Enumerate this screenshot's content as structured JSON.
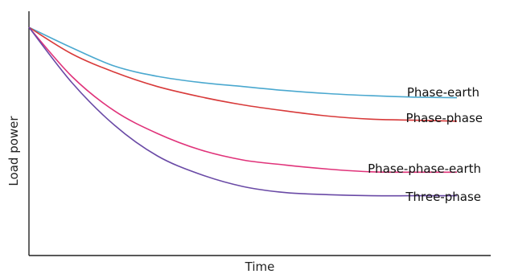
{
  "chart_data": {
    "type": "line",
    "title": "",
    "xlabel": "Time",
    "ylabel": "Load power",
    "x_ticks": [],
    "y_ticks": [],
    "xlim": [
      0,
      1
    ],
    "ylim": [
      0,
      1
    ],
    "grid": false,
    "legend": "inline labels at right end of each curve",
    "series": [
      {
        "name": "Phase-earth",
        "color": "#4aa8cf",
        "x": [
          0,
          0.1,
          0.2,
          0.3,
          0.4,
          0.5,
          0.6,
          0.7,
          0.8,
          0.9,
          1.0
        ],
        "y": [
          1.0,
          0.9,
          0.81,
          0.76,
          0.73,
          0.71,
          0.69,
          0.675,
          0.665,
          0.658,
          0.655
        ]
      },
      {
        "name": "Phase-phase",
        "color": "#d83a3a",
        "x": [
          0,
          0.1,
          0.2,
          0.3,
          0.4,
          0.5,
          0.6,
          0.7,
          0.8,
          0.9,
          1.0
        ],
        "y": [
          1.0,
          0.87,
          0.78,
          0.71,
          0.66,
          0.62,
          0.59,
          0.565,
          0.55,
          0.545,
          0.54
        ]
      },
      {
        "name": "Phase-phase-earth",
        "color": "#e0337a",
        "x": [
          0,
          0.1,
          0.2,
          0.3,
          0.4,
          0.5,
          0.6,
          0.7,
          0.8,
          0.9,
          1.0
        ],
        "y": [
          1.0,
          0.76,
          0.59,
          0.48,
          0.4,
          0.35,
          0.325,
          0.305,
          0.292,
          0.29,
          0.29
        ]
      },
      {
        "name": "Three-phase",
        "color": "#6a4aa6",
        "x": [
          0,
          0.1,
          0.2,
          0.3,
          0.4,
          0.5,
          0.6,
          0.7,
          0.8,
          0.9,
          1.0
        ],
        "y": [
          1.0,
          0.73,
          0.52,
          0.37,
          0.28,
          0.22,
          0.19,
          0.18,
          0.175,
          0.175,
          0.175
        ]
      }
    ]
  }
}
